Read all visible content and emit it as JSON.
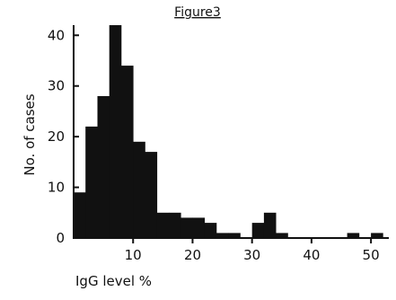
{
  "chart_data": {
    "type": "bar",
    "title": "Figure3",
    "xlabel": "IgG level %",
    "ylabel": "No. of cases",
    "bin_width": 2,
    "x": [
      1,
      3,
      5,
      7,
      9,
      11,
      13,
      15,
      17,
      19,
      21,
      23,
      25,
      27,
      29,
      31,
      33,
      35,
      37,
      39,
      41,
      43,
      45,
      47,
      49,
      51
    ],
    "values": [
      9,
      22,
      28,
      42,
      34,
      19,
      17,
      5,
      5,
      4,
      4,
      3,
      1,
      1,
      0,
      3,
      5,
      1,
      0,
      0,
      0,
      0,
      0,
      1,
      0,
      1
    ],
    "xlim": [
      0,
      53
    ],
    "ylim": [
      0,
      42
    ],
    "xticks": [
      10,
      20,
      30,
      40,
      50
    ],
    "xtick_labels": [
      "10",
      "20",
      "30",
      "40",
      "50"
    ],
    "yticks": [
      0,
      10,
      20,
      30,
      40
    ],
    "ytick_labels": [
      "0",
      "10",
      "20",
      "30",
      "40"
    ],
    "grid": false,
    "legend": "none",
    "bar_color": "#111111"
  }
}
